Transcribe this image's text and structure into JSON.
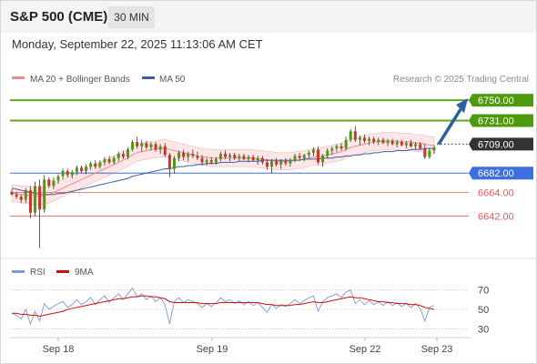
{
  "header": {
    "title": "S&P 500 (CME)",
    "timeframe": "30 MIN",
    "datetime": "Monday, September 22, 2025 11:13:06 AM CET"
  },
  "legend": {
    "ma20": "MA 20 + Bollinger Bands",
    "ma50": "MA 50",
    "rsi": "RSI",
    "ma9": "9MA",
    "credit": "Research © 2025 Trading Central"
  },
  "colors": {
    "green_line": "#5fa818",
    "green_tag": "#4f9a0c",
    "blue_level": "#3d6fe0",
    "red_level": "#e45a5a",
    "current_tag": "#333333",
    "candle_up": "#4f9a0c",
    "candle_down": "#c0392b",
    "ma20": "#f08a8a",
    "ma50": "#3a5fa8",
    "band_fill": "#fde2e2",
    "arrow": "#2c5fa0",
    "rsi": "#7a9ad8",
    "ma9": "#cc1111"
  },
  "chart_data": [
    {
      "type": "candlestick",
      "title": "S&P 500 (CME) 30 MIN",
      "x_tick_labels": [
        "Sep 18",
        "Sep 19",
        "Sep 22",
        "Sep 23"
      ],
      "ylim": [
        6610,
        6762
      ],
      "levels": [
        {
          "value": 6750.0,
          "label": "6750.00",
          "kind": "resistance"
        },
        {
          "value": 6731.0,
          "label": "6731.00",
          "kind": "resistance"
        },
        {
          "value": 6709.0,
          "label": "6709.00",
          "kind": "current"
        },
        {
          "value": 6682.0,
          "label": "6682.00",
          "kind": "pivot"
        },
        {
          "value": 6664.0,
          "label": "6664.00",
          "kind": "support"
        },
        {
          "value": 6642.0,
          "label": "6642.00",
          "kind": "support"
        }
      ],
      "candles": [
        [
          6664,
          6667,
          6661,
          6662
        ],
        [
          6662,
          6664,
          6658,
          6660
        ],
        [
          6660,
          6662,
          6654,
          6657
        ],
        [
          6657,
          6668,
          6654,
          6666
        ],
        [
          6666,
          6670,
          6640,
          6645
        ],
        [
          6645,
          6674,
          6642,
          6670
        ],
        [
          6670,
          6676,
          6612,
          6648
        ],
        [
          6648,
          6680,
          6645,
          6676
        ],
        [
          6676,
          6678,
          6668,
          6670
        ],
        [
          6670,
          6678,
          6667,
          6675
        ],
        [
          6675,
          6681,
          6672,
          6679
        ],
        [
          6679,
          6686,
          6676,
          6684
        ],
        [
          6684,
          6686,
          6678,
          6680
        ],
        [
          6680,
          6685,
          6677,
          6683
        ],
        [
          6683,
          6689,
          6680,
          6687
        ],
        [
          6687,
          6689,
          6682,
          6684
        ],
        [
          6684,
          6690,
          6681,
          6688
        ],
        [
          6688,
          6693,
          6685,
          6691
        ],
        [
          6691,
          6694,
          6686,
          6688
        ],
        [
          6688,
          6694,
          6686,
          6692
        ],
        [
          6692,
          6697,
          6689,
          6695
        ],
        [
          6695,
          6698,
          6690,
          6692
        ],
        [
          6692,
          6698,
          6690,
          6696
        ],
        [
          6696,
          6702,
          6693,
          6700
        ],
        [
          6700,
          6703,
          6695,
          6697
        ],
        [
          6697,
          6706,
          6695,
          6704
        ],
        [
          6704,
          6713,
          6702,
          6711
        ],
        [
          6711,
          6716,
          6705,
          6707
        ],
        [
          6707,
          6713,
          6702,
          6710
        ],
        [
          6710,
          6712,
          6704,
          6706
        ],
        [
          6706,
          6711,
          6703,
          6709
        ],
        [
          6709,
          6711,
          6702,
          6704
        ],
        [
          6704,
          6709,
          6700,
          6707
        ],
        [
          6707,
          6710,
          6697,
          6699
        ],
        [
          6699,
          6701,
          6678,
          6686
        ],
        [
          6686,
          6698,
          6682,
          6696
        ],
        [
          6696,
          6703,
          6693,
          6701
        ],
        [
          6701,
          6704,
          6694,
          6697
        ],
        [
          6697,
          6702,
          6693,
          6700
        ],
        [
          6700,
          6704,
          6696,
          6698
        ],
        [
          6698,
          6702,
          6694,
          6696
        ],
        [
          6696,
          6699,
          6690,
          6692
        ],
        [
          6692,
          6696,
          6689,
          6694
        ],
        [
          6694,
          6697,
          6690,
          6692
        ],
        [
          6692,
          6697,
          6690,
          6695
        ],
        [
          6695,
          6702,
          6693,
          6700
        ],
        [
          6700,
          6703,
          6695,
          6697
        ],
        [
          6697,
          6701,
          6693,
          6699
        ],
        [
          6699,
          6701,
          6694,
          6696
        ],
        [
          6696,
          6700,
          6693,
          6698
        ],
        [
          6698,
          6700,
          6694,
          6695
        ],
        [
          6695,
          6699,
          6692,
          6697
        ],
        [
          6697,
          6699,
          6693,
          6694
        ],
        [
          6694,
          6698,
          6690,
          6696
        ],
        [
          6696,
          6698,
          6690,
          6692
        ],
        [
          6692,
          6695,
          6685,
          6688
        ],
        [
          6688,
          6695,
          6682,
          6693
        ],
        [
          6693,
          6696,
          6688,
          6690
        ],
        [
          6690,
          6695,
          6686,
          6693
        ],
        [
          6693,
          6696,
          6689,
          6691
        ],
        [
          6691,
          6696,
          6688,
          6694
        ],
        [
          6694,
          6700,
          6692,
          6698
        ],
        [
          6698,
          6701,
          6694,
          6696
        ],
        [
          6696,
          6700,
          6693,
          6699
        ],
        [
          6699,
          6703,
          6696,
          6701
        ],
        [
          6701,
          6706,
          6698,
          6704
        ],
        [
          6704,
          6707,
          6690,
          6692
        ],
        [
          6692,
          6700,
          6688,
          6698
        ],
        [
          6698,
          6705,
          6696,
          6703
        ],
        [
          6703,
          6707,
          6699,
          6705
        ],
        [
          6705,
          6709,
          6702,
          6707
        ],
        [
          6707,
          6710,
          6703,
          6705
        ],
        [
          6705,
          6716,
          6703,
          6713
        ],
        [
          6713,
          6723,
          6711,
          6721
        ],
        [
          6721,
          6726,
          6711,
          6713
        ],
        [
          6713,
          6717,
          6708,
          6715
        ],
        [
          6715,
          6718,
          6710,
          6712
        ],
        [
          6712,
          6716,
          6708,
          6714
        ],
        [
          6714,
          6716,
          6709,
          6711
        ],
        [
          6711,
          6715,
          6708,
          6713
        ],
        [
          6713,
          6715,
          6709,
          6710
        ],
        [
          6710,
          6714,
          6707,
          6712
        ],
        [
          6712,
          6714,
          6708,
          6709
        ],
        [
          6709,
          6713,
          6706,
          6711
        ],
        [
          6711,
          6713,
          6707,
          6708
        ],
        [
          6708,
          6712,
          6705,
          6710
        ],
        [
          6710,
          6713,
          6706,
          6707
        ],
        [
          6707,
          6711,
          6704,
          6709
        ],
        [
          6709,
          6711,
          6704,
          6705
        ],
        [
          6705,
          6709,
          6695,
          6697
        ],
        [
          6697,
          6705,
          6695,
          6703
        ],
        [
          6703,
          6708,
          6700,
          6706
        ]
      ],
      "ma20": [
        6663,
        6663,
        6662,
        6662,
        6661,
        6661,
        6660,
        6661,
        6662,
        6664,
        6666,
        6668,
        6670,
        6672,
        6674,
        6676,
        6678,
        6680,
        6682,
        6684,
        6686,
        6688,
        6690,
        6692,
        6694,
        6696,
        6699,
        6701,
        6702,
        6703,
        6704,
        6704,
        6705,
        6705,
        6704,
        6703,
        6702,
        6701,
        6700,
        6699,
        6698,
        6697,
        6697,
        6696,
        6696,
        6696,
        6696,
        6696,
        6696,
        6696,
        6696,
        6696,
        6696,
        6695,
        6695,
        6694,
        6694,
        6693,
        6693,
        6693,
        6693,
        6694,
        6694,
        6695,
        6696,
        6697,
        6697,
        6698,
        6699,
        6700,
        6701,
        6702,
        6704,
        6706,
        6707,
        6708,
        6709,
        6710,
        6711,
        6711,
        6712,
        6712,
        6712,
        6712,
        6711,
        6711,
        6711,
        6710,
        6710,
        6709,
        6708,
        6708
      ],
      "ma50": [
        6668,
        6667,
        6666,
        6665,
        6664,
        6663,
        6662,
        6662,
        6662,
        6662,
        6663,
        6663,
        6664,
        6665,
        6666,
        6667,
        6668,
        6669,
        6670,
        6671,
        6672,
        6673,
        6674,
        6675,
        6676,
        6677,
        6679,
        6680,
        6681,
        6682,
        6683,
        6684,
        6685,
        6686,
        6686,
        6687,
        6688,
        6688,
        6689,
        6689,
        6690,
        6690,
        6691,
        6691,
        6691,
        6692,
        6692,
        6692,
        6692,
        6693,
        6693,
        6693,
        6693,
        6693,
        6694,
        6694,
        6694,
        6694,
        6694,
        6694,
        6694,
        6694,
        6694,
        6695,
        6695,
        6695,
        6695,
        6696,
        6696,
        6696,
        6697,
        6697,
        6698,
        6698,
        6699,
        6699,
        6700,
        6700,
        6701,
        6701,
        6702,
        6702,
        6702,
        6703,
        6703,
        6703,
        6704,
        6704,
        6704,
        6705,
        6705,
        6705
      ],
      "band_width": 8,
      "projection": {
        "from": 6709,
        "to": 6750
      }
    },
    {
      "type": "line",
      "title": "RSI",
      "ylim": [
        20,
        80
      ],
      "y_ticks": [
        70,
        50,
        30
      ],
      "series": [
        {
          "name": "RSI",
          "values": [
            46,
            44,
            40,
            50,
            35,
            48,
            38,
            56,
            50,
            53,
            56,
            58,
            52,
            55,
            60,
            55,
            58,
            62,
            55,
            60,
            64,
            57,
            62,
            66,
            60,
            66,
            72,
            63,
            66,
            60,
            64,
            58,
            62,
            55,
            35,
            58,
            62,
            57,
            60,
            58,
            56,
            52,
            56,
            53,
            57,
            62,
            58,
            60,
            56,
            59,
            55,
            58,
            54,
            57,
            52,
            47,
            55,
            51,
            55,
            53,
            56,
            60,
            56,
            59,
            62,
            64,
            48,
            58,
            62,
            64,
            66,
            62,
            68,
            70,
            56,
            60,
            55,
            59,
            55,
            58,
            54,
            58,
            54,
            57,
            53,
            56,
            52,
            56,
            51,
            38,
            52,
            54
          ]
        },
        {
          "name": "9MA",
          "values": [
            46,
            46,
            45,
            45,
            44,
            44,
            43,
            44,
            45,
            46,
            47,
            48,
            50,
            51,
            52,
            53,
            54,
            55,
            56,
            57,
            58,
            59,
            60,
            61,
            61,
            62,
            63,
            63,
            64,
            64,
            63,
            63,
            62,
            61,
            58,
            57,
            57,
            57,
            57,
            57,
            57,
            56,
            56,
            56,
            56,
            57,
            57,
            57,
            57,
            57,
            57,
            57,
            57,
            57,
            56,
            55,
            55,
            54,
            54,
            54,
            54,
            55,
            55,
            56,
            57,
            58,
            57,
            57,
            58,
            59,
            60,
            61,
            62,
            63,
            62,
            62,
            61,
            60,
            59,
            58,
            58,
            57,
            57,
            56,
            56,
            56,
            55,
            55,
            54,
            52,
            51,
            50
          ]
        }
      ]
    }
  ]
}
